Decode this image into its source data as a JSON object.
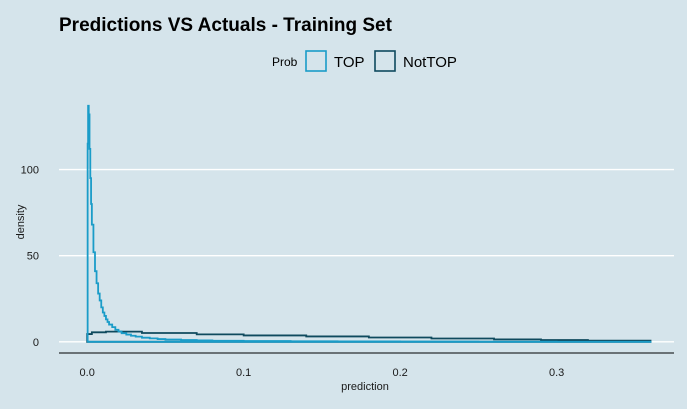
{
  "chart_data": {
    "type": "line",
    "title": "Predictions VS Actuals - Training Set",
    "xlabel": "prediction",
    "ylabel": "density",
    "xlim": [
      -0.018,
      0.375
    ],
    "ylim": [
      -6.5,
      145
    ],
    "xticks": [
      0.0,
      0.1,
      0.2,
      0.3
    ],
    "xtick_labels": [
      "0.0",
      "0.1",
      "0.2",
      "0.3"
    ],
    "yticks": [
      0,
      50,
      100
    ],
    "ytick_labels": [
      "0",
      "50",
      "100"
    ],
    "grid": "horizontal-major",
    "legend": {
      "title": "Prob",
      "position": "top",
      "entries": [
        "TOP",
        "NotTOP"
      ]
    },
    "series": [
      {
        "name": "TOP",
        "color": "#1a9cc8",
        "step": true,
        "x": [
          0.0,
          0.0003,
          0.0006,
          0.001,
          0.0015,
          0.002,
          0.0025,
          0.003,
          0.004,
          0.005,
          0.006,
          0.007,
          0.008,
          0.009,
          0.01,
          0.011,
          0.012,
          0.013,
          0.014,
          0.016,
          0.018,
          0.02,
          0.022,
          0.025,
          0.028,
          0.031,
          0.035,
          0.04,
          0.045,
          0.05,
          0.06,
          0.07,
          0.08,
          0.1,
          0.13,
          0.16,
          0.2,
          0.25,
          0.3,
          0.36
        ],
        "y": [
          0,
          115,
          137,
          132,
          112,
          95,
          80,
          68,
          52,
          41,
          34,
          28,
          24,
          20,
          17,
          15,
          13,
          11.5,
          10,
          8.5,
          7,
          6,
          5,
          4.2,
          3.5,
          3,
          2.4,
          2,
          1.6,
          1.3,
          1,
          0.8,
          0.6,
          0.45,
          0.3,
          0.2,
          0.15,
          0.1,
          0.05,
          0.02
        ]
      },
      {
        "name": "NotTOP",
        "color": "#0f4a5e",
        "step": true,
        "x": [
          0.0,
          0.003,
          0.012,
          0.035,
          0.07,
          0.1,
          0.14,
          0.18,
          0.22,
          0.26,
          0.29,
          0.32,
          0.36
        ],
        "y": [
          4.5,
          5.5,
          5.9,
          5.1,
          4.3,
          3.7,
          3.1,
          2.5,
          1.9,
          1.4,
          1.0,
          0.7,
          0.4
        ]
      }
    ]
  }
}
